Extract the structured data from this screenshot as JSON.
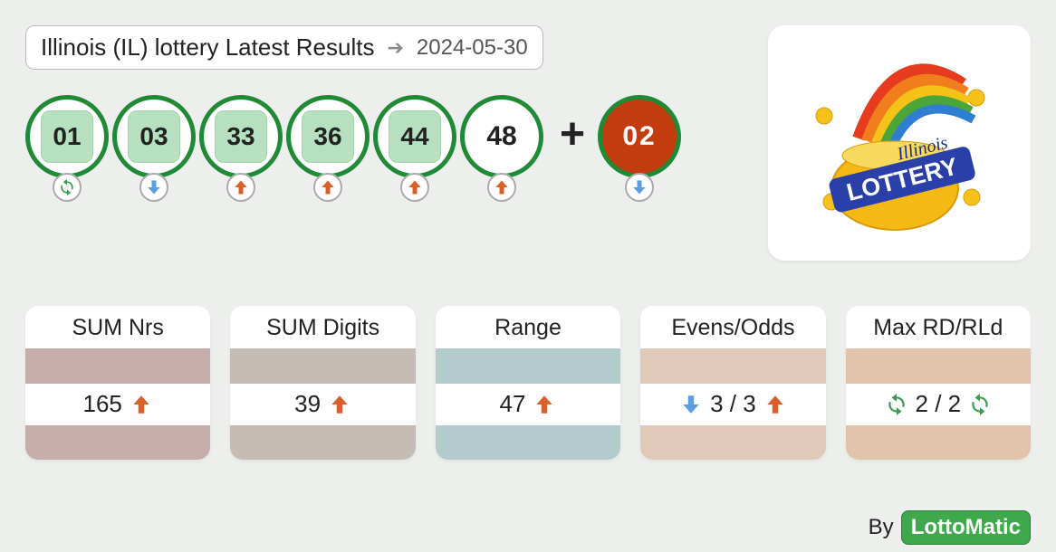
{
  "header": {
    "title": "Illinois (IL) lottery Latest Results",
    "date": "2024-05-30"
  },
  "logo": {
    "word_top": "Illinois",
    "word_main": "LOTTERY",
    "pot_color": "#f5b916",
    "text_banner_color": "#2a3fa8",
    "rainbow_colors": [
      "#e63b1e",
      "#f07e1c",
      "#f5c21a",
      "#4aa63a",
      "#2f7ed1"
    ]
  },
  "balls": [
    {
      "value": "01",
      "style": "chip",
      "trend": "cycle"
    },
    {
      "value": "03",
      "style": "chip",
      "trend": "down"
    },
    {
      "value": "33",
      "style": "chip",
      "trend": "up"
    },
    {
      "value": "36",
      "style": "chip",
      "trend": "up"
    },
    {
      "value": "44",
      "style": "chip",
      "trend": "up"
    },
    {
      "value": "48",
      "style": "plain",
      "trend": "up"
    }
  ],
  "bonus_ball": {
    "value": "02",
    "trend": "down"
  },
  "stats": [
    {
      "title": "SUM Nrs",
      "value": "165",
      "icons": [
        "up"
      ],
      "top_color": "#c6adab",
      "bot_color": "#c6adab"
    },
    {
      "title": "SUM Digits",
      "value": "39",
      "icons": [
        "up"
      ],
      "top_color": "#c4bcb5",
      "bot_color": "#c4bcb5"
    },
    {
      "title": "Range",
      "value": "47",
      "icons": [
        "up"
      ],
      "top_color": "#b3cbcd",
      "bot_color": "#b3cbcd"
    },
    {
      "title": "Evens/Odds",
      "value": "3 / 3",
      "icons": [
        "down",
        "up"
      ],
      "top_color": "#e0c9b9",
      "bot_color": "#e0c9b9",
      "layout": "surround"
    },
    {
      "title": "Max RD/RLd",
      "value": "2 / 2",
      "icons": [
        "cycle",
        "cycle"
      ],
      "top_color": "#e2c3ab",
      "bot_color": "#e2c3ab",
      "layout": "surround"
    }
  ],
  "byline": {
    "prefix": "By",
    "brand": "LottoMatic"
  },
  "colors": {
    "ball_border": "#1f8a36",
    "chip_bg": "#b6e0bf",
    "bonus_bg": "#c23c0f",
    "arrow_up": "#d9602a",
    "arrow_down": "#5a9de0",
    "arrow_cycle": "#3a9a4d"
  }
}
